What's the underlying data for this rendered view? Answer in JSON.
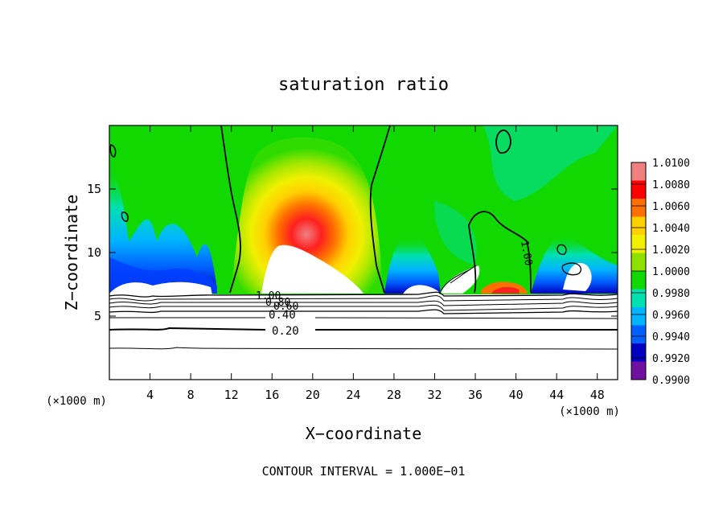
{
  "chart_data": {
    "type": "heatmap",
    "title": "saturation ratio",
    "xlabel": "X−coordinate",
    "ylabel": "Z−coordinate",
    "x_unit_label": "(×1000 m)",
    "y_unit_label": "(×1000 m)",
    "xlim": [
      0,
      50
    ],
    "ylim": [
      0,
      20
    ],
    "x_ticks": [
      4,
      8,
      12,
      16,
      20,
      24,
      28,
      32,
      36,
      40,
      44,
      48
    ],
    "y_ticks": [
      5,
      10,
      15
    ],
    "colorbar": {
      "levels": [
        "1.0100",
        "1.0080",
        "1.0060",
        "1.0040",
        "1.0020",
        "1.0000",
        "0.9980",
        "0.9960",
        "0.9940",
        "0.9920",
        "0.9900"
      ],
      "colors": [
        "#f08080",
        "#ff0000",
        "#ff7000",
        "#ffd000",
        "#f0f000",
        "#8ee000",
        "#10d800",
        "#00e0b0",
        "#00b4ff",
        "#0060ff",
        "#0000c0",
        "#7010a0"
      ]
    },
    "contour_labels": [
      {
        "text": "1.00",
        "x": 15.5,
        "z": 6.9
      },
      {
        "text": "0.80",
        "x": 16.5,
        "z": 6.4
      },
      {
        "text": "0.60",
        "x": 17.2,
        "z": 6.0
      },
      {
        "text": "0.40",
        "x": 17.5,
        "z": 5.1
      },
      {
        "text": "0.20",
        "x": 17.7,
        "z": 3.8
      },
      {
        "text": "1.00",
        "x": 41.0,
        "z": 10.3
      }
    ],
    "contour_interval_label": "CONTOUR INTERVAL = 1.000E−01"
  }
}
